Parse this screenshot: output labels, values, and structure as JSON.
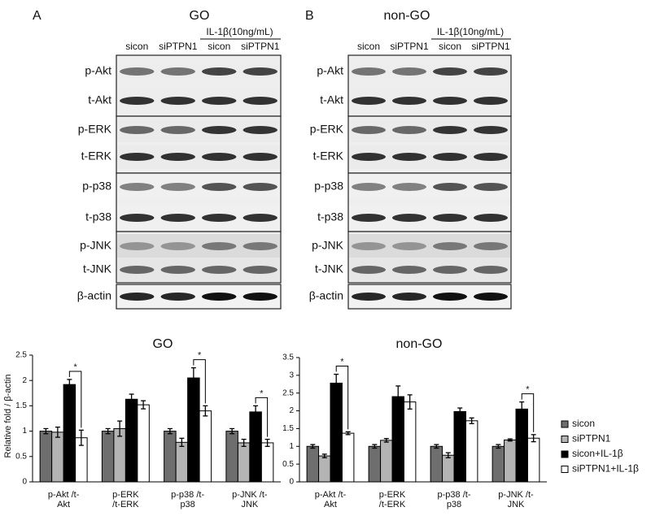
{
  "blots": [
    {
      "letter": "A",
      "title": "GO",
      "treatment": "IL-1β(10ng/mL)",
      "lanes": [
        "sicon",
        "siPTPN1",
        "sicon",
        "siPTPN1"
      ],
      "rows": [
        "p-Akt",
        "t-Akt",
        "p-ERK",
        "t-ERK",
        "p-p38",
        "t-p38",
        "p-JNK",
        "t-JNK",
        "β-actin"
      ]
    },
    {
      "letter": "B",
      "title": "non-GO",
      "treatment": "IL-1β(10ng/mL)",
      "lanes": [
        "sicon",
        "siPTPN1",
        "sicon",
        "siPTPN1"
      ],
      "rows": [
        "p-Akt",
        "t-Akt",
        "p-ERK",
        "t-ERK",
        "p-p38",
        "t-p38",
        "p-JNK",
        "t-JNK",
        "β-actin"
      ]
    }
  ],
  "chart_data": [
    {
      "type": "bar",
      "title": "GO",
      "y_label": "Relative fold / β-actin",
      "categories": [
        "p-Akt /t-Akt",
        "p-ERK /t-ERK",
        "p-p38 /t-p38",
        "p-JNK /t-JNK"
      ],
      "ylim": [
        0,
        2.5
      ],
      "yticks": [
        0,
        0.5,
        1,
        1.5,
        2,
        2.5
      ],
      "series": [
        {
          "name": "sicon",
          "color": "#6e6e6e",
          "values": [
            1,
            1,
            1,
            1
          ],
          "errors": [
            0.05,
            0.05,
            0.05,
            0.05
          ]
        },
        {
          "name": "siPTPN1",
          "color": "#b4b4b4",
          "values": [
            0.98,
            1.05,
            0.78,
            0.77
          ],
          "errors": [
            0.1,
            0.15,
            0.08,
            0.07
          ]
        },
        {
          "name": "sicon+IL-1β",
          "color": "#000000",
          "values": [
            1.92,
            1.63,
            2.05,
            1.38
          ],
          "errors": [
            0.1,
            0.1,
            0.2,
            0.12
          ]
        },
        {
          "name": "siPTPN1+IL-1β",
          "color": "#ffffff",
          "values": [
            0.87,
            1.52,
            1.4,
            0.77
          ],
          "errors": [
            0.15,
            0.08,
            0.1,
            0.07
          ]
        }
      ],
      "annotations": [
        {
          "text": "*",
          "category": "p-Akt /t-Akt"
        },
        {
          "text": "*",
          "category": "p-p38 /t-p38"
        },
        {
          "text": "*",
          "category": "p-JNK /t-JNK"
        }
      ],
      "legend": false
    },
    {
      "type": "bar",
      "title": "non-GO",
      "categories": [
        "p-Akt /t-Akt",
        "p-ERK /t-ERK",
        "p-p38 /t-p38",
        "p-JNK /t-JNK"
      ],
      "ylim": [
        0,
        3.5
      ],
      "yticks": [
        0,
        0.5,
        1,
        1.5,
        2,
        2.5,
        3,
        3.5
      ],
      "series": [
        {
          "name": "sicon",
          "color": "#6e6e6e",
          "values": [
            1,
            1,
            1,
            1
          ],
          "errors": [
            0.05,
            0.05,
            0.05,
            0.05
          ]
        },
        {
          "name": "siPTPN1",
          "color": "#b4b4b4",
          "values": [
            0.73,
            1.17,
            0.75,
            1.18
          ],
          "errors": [
            0.05,
            0.05,
            0.07,
            0.03
          ]
        },
        {
          "name": "sicon+IL-1β",
          "color": "#000000",
          "values": [
            2.78,
            2.4,
            1.98,
            2.05
          ],
          "errors": [
            0.25,
            0.3,
            0.1,
            0.2
          ]
        },
        {
          "name": "siPTPN1+IL-1β",
          "color": "#ffffff",
          "values": [
            1.37,
            2.25,
            1.72,
            1.23
          ],
          "errors": [
            0.04,
            0.2,
            0.08,
            0.1
          ]
        }
      ],
      "annotations": [
        {
          "text": "*",
          "category": "p-Akt /t-Akt"
        },
        {
          "text": "*",
          "category": "p-JNK /t-JNK"
        }
      ],
      "legend": "right"
    }
  ]
}
